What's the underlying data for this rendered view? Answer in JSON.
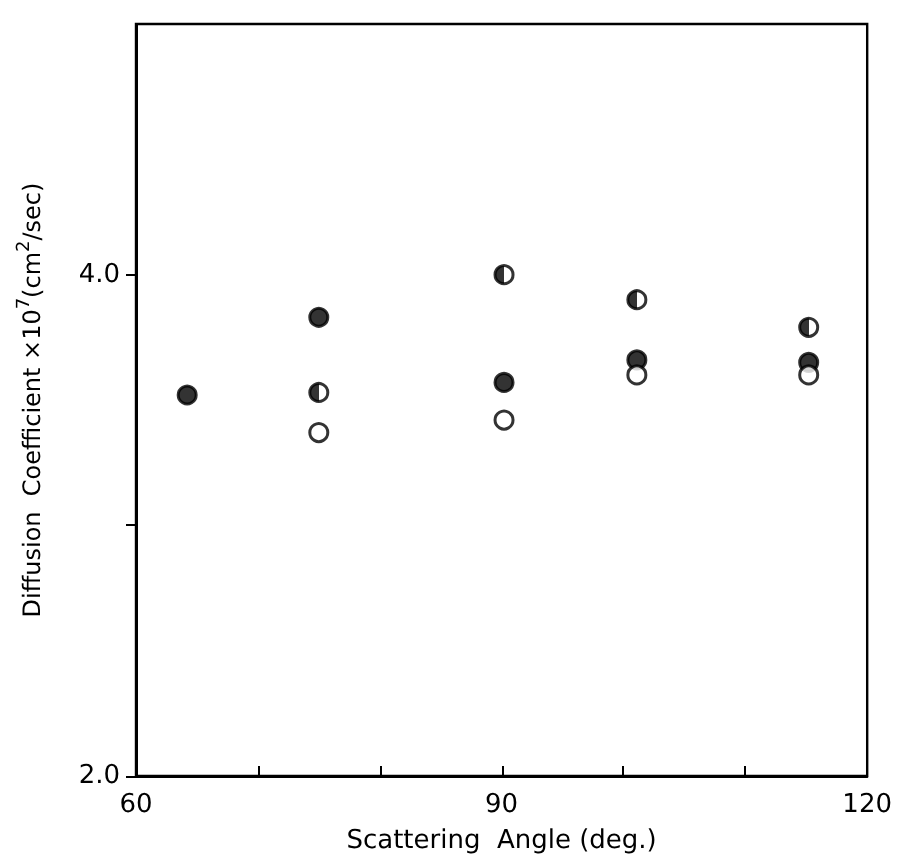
{
  "chart_data": {
    "type": "scatter",
    "xlabel": "Scattering  Angle (deg.)",
    "ylabel": "Diffusion  Coefficient ×10$^{7}$(cm$^{2}$/sec)",
    "xlim": [
      60,
      120
    ],
    "xticks": [
      60,
      {
        "value": 70,
        "label": null
      },
      {
        "value": 80,
        "label": null
      },
      90,
      {
        "value": 100,
        "label": null
      },
      {
        "value": 110,
        "label": null
      },
      120
    ],
    "ylim": [
      2,
      5
    ],
    "yticks": [
      {
        "value": 2,
        "label": "2.0"
      },
      {
        "value": 3,
        "label": null
      },
      {
        "value": 4,
        "label": "4.0"
      }
    ],
    "marker": "circle",
    "series": [
      {
        "color": "#000000",
        "x": [
          64.2,
          75,
          90.2,
          101.1,
          115.2
        ],
        "values": [
          3.52,
          3.83,
          3.57,
          3.66,
          3.65
        ]
      },
      {
        "color": "#000000",
        "x": [
          75,
          90.2,
          101.1,
          115.2
        ],
        "values": [
          3.53,
          4.0,
          3.9,
          3.79
        ]
      },
      {
        "color": "#000000",
        "x": [
          75,
          90.2,
          101.1,
          115.2
        ],
        "values": [
          3.37,
          3.42,
          3.6,
          3.6
        ]
      }
    ]
  }
}
